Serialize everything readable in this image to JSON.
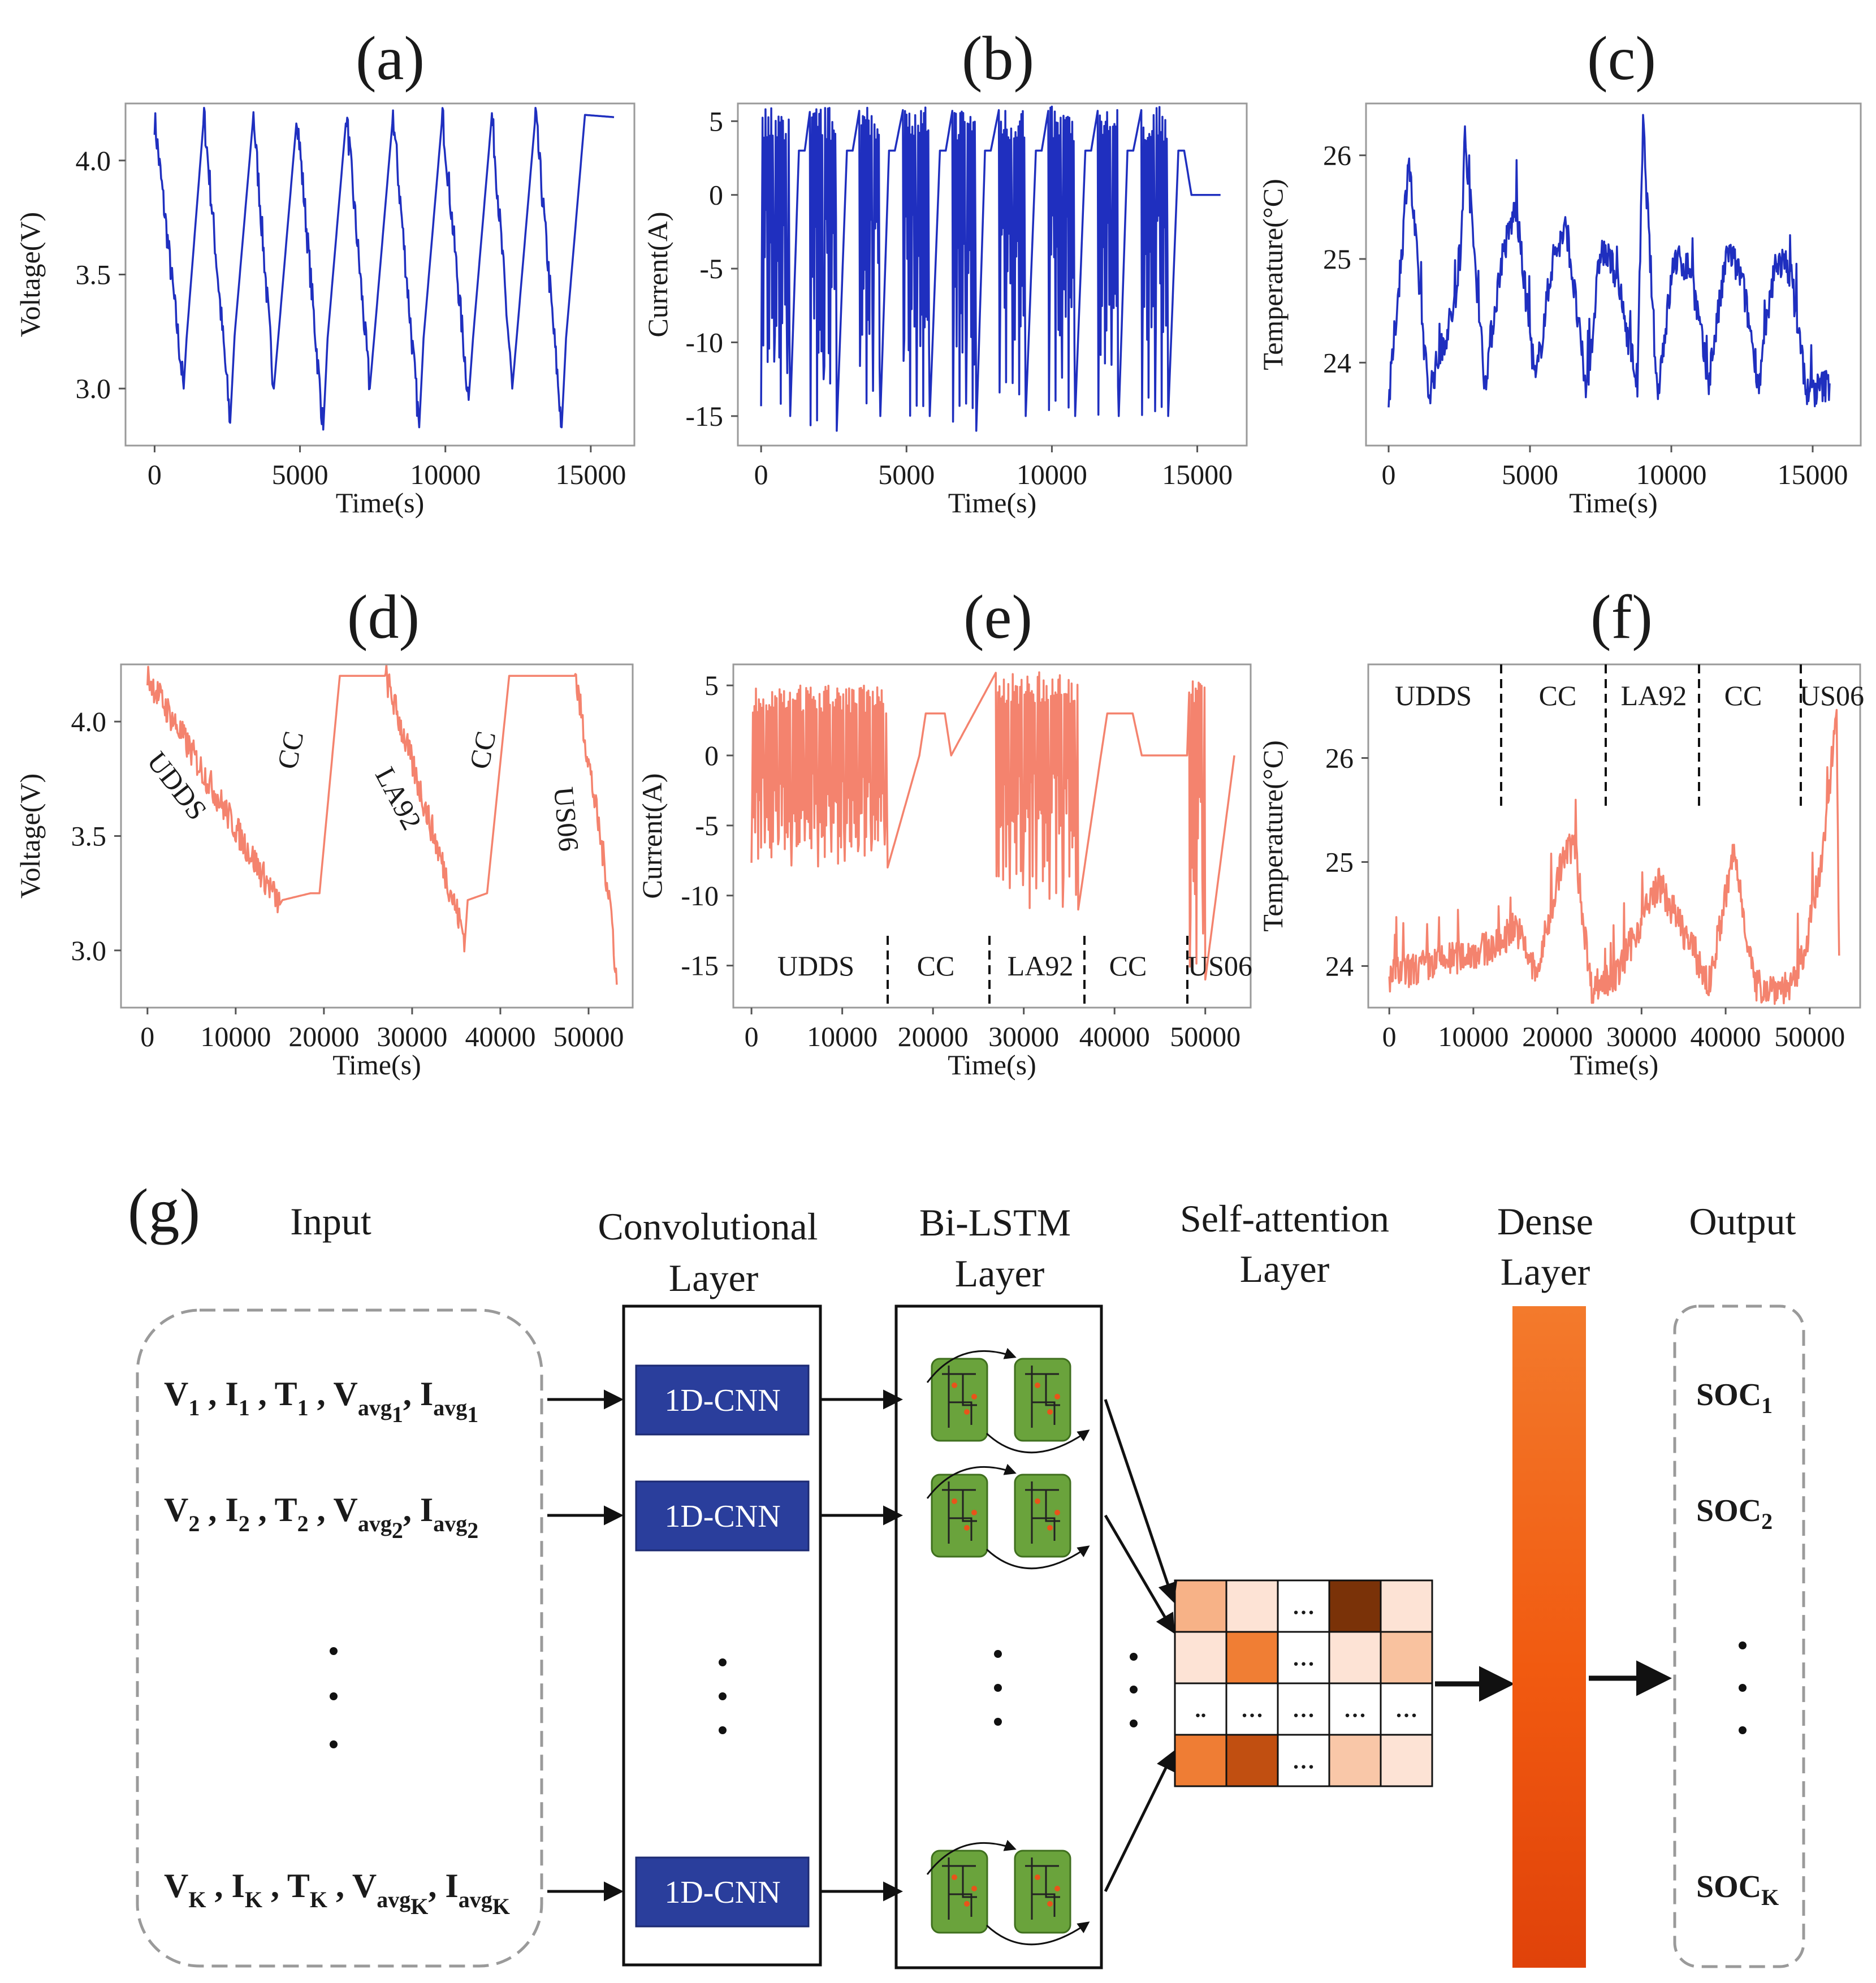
{
  "chart_data": [
    {
      "id": "a",
      "panel_label": "(a)",
      "type": "line",
      "color": "#1f2fbf",
      "xlabel": "Time(s)",
      "ylabel": "Voltage(V)",
      "xlim": [
        -1000,
        16500
      ],
      "ylim": [
        2.75,
        4.25
      ],
      "xticks": [
        0,
        5000,
        10000,
        15000
      ],
      "xtick_labels": [
        "0",
        "5000",
        "10000",
        "15000"
      ],
      "yticks": [
        3.0,
        3.5,
        4.0
      ],
      "ytick_labels": [
        "3.0",
        "3.5",
        "4.0"
      ],
      "series": [
        {
          "name": "Voltage",
          "signal": "voltage",
          "x": [
            0,
            1000,
            1100,
            1700,
            2600,
            2750,
            3400,
            4100,
            4250,
            4900,
            5800,
            5950,
            6600,
            7400,
            7550,
            8200,
            9100,
            9250,
            9900,
            10800,
            10950,
            11600,
            12300,
            12450,
            13100,
            14000,
            14150,
            14800,
            15800
          ],
          "y": [
            4.18,
            3.0,
            3.22,
            4.2,
            2.85,
            3.23,
            4.2,
            3.0,
            3.22,
            4.2,
            2.82,
            3.22,
            4.2,
            3.0,
            3.22,
            4.2,
            2.83,
            3.22,
            4.2,
            2.95,
            3.22,
            4.2,
            3.0,
            3.22,
            4.2,
            2.83,
            3.22,
            4.2,
            4.19
          ]
        }
      ]
    },
    {
      "id": "b",
      "panel_label": "(b)",
      "type": "line",
      "color": "#1f2fbf",
      "xlabel": "Time(s)",
      "ylabel": "Current(A)",
      "xlim": [
        -800,
        16700
      ],
      "ylim": [
        -17,
        6.2
      ],
      "xticks": [
        0,
        5000,
        10000,
        15000
      ],
      "xtick_labels": [
        "0",
        "5000",
        "10000",
        "15000"
      ],
      "yticks": [
        5,
        0,
        -5,
        -10,
        -15
      ],
      "ytick_labels": [
        "5",
        "0",
        "-5",
        "-10",
        "-15"
      ],
      "series": [
        {
          "name": "Current",
          "signal": "current",
          "x": [
            0,
            1000,
            1300,
            1500,
            1700,
            2600,
            2950,
            3150,
            3400,
            4100,
            4400,
            4600,
            4900,
            5800,
            6150,
            6350,
            6600,
            7400,
            7700,
            7900,
            8200,
            9100,
            9450,
            9650,
            9900,
            10800,
            11150,
            11350,
            11600,
            12300,
            12600,
            12800,
            13100,
            14000,
            14350,
            14550,
            14800,
            15800
          ],
          "y": [
            6,
            -15,
            3,
            3,
            6,
            -16,
            3,
            3,
            6,
            -15,
            3,
            3,
            6,
            -15,
            3,
            3,
            6,
            -16,
            3,
            3,
            6,
            -15,
            3,
            3,
            6,
            -15,
            3,
            3,
            6,
            -15,
            3,
            3,
            6,
            -15,
            3,
            3,
            0,
            0
          ]
        }
      ]
    },
    {
      "id": "c",
      "panel_label": "(c)",
      "type": "line",
      "color": "#1f2fbf",
      "xlabel": "Time(s)",
      "ylabel": "Temperature(°C)",
      "xlim": [
        -800,
        16700
      ],
      "ylim": [
        23.2,
        26.5
      ],
      "xticks": [
        0,
        5000,
        10000,
        15000
      ],
      "xtick_labels": [
        "0",
        "5000",
        "10000",
        "15000"
      ],
      "yticks": [
        24,
        25,
        26
      ],
      "ytick_labels": [
        "24",
        "25",
        "26"
      ],
      "series": [
        {
          "name": "Temperature",
          "signal": "temperature",
          "x": [
            0,
            500,
            700,
            1400,
            2500,
            2700,
            3400,
            4000,
            4500,
            5200,
            5800,
            6300,
            7000,
            7500,
            8000,
            8800,
            9000,
            9500,
            10100,
            10700,
            11300,
            12000,
            12500,
            13100,
            13700,
            14200,
            14800,
            15600
          ],
          "y": [
            23.6,
            25.2,
            26.0,
            23.7,
            24.7,
            26.2,
            23.8,
            25.0,
            25.5,
            23.8,
            25.0,
            25.3,
            23.7,
            25.1,
            24.9,
            23.8,
            26.3,
            23.7,
            25.0,
            24.9,
            23.8,
            25.1,
            24.8,
            23.8,
            25.0,
            24.9,
            23.7,
            23.8
          ]
        }
      ]
    },
    {
      "id": "d",
      "panel_label": "(d)",
      "type": "line",
      "color": "#f4836e",
      "xlabel": "Time(s)",
      "ylabel": "Voltage(V)",
      "xlim": [
        -3000,
        55000
      ],
      "ylim": [
        2.75,
        4.25
      ],
      "xticks": [
        0,
        10000,
        20000,
        30000,
        40000,
        50000
      ],
      "xtick_labels": [
        "0",
        "10000",
        "20000",
        "30000",
        "40000",
        "50000"
      ],
      "yticks": [
        3.0,
        3.5,
        4.0
      ],
      "ytick_labels": [
        "3.0",
        "3.5",
        "4.0"
      ],
      "series": [
        {
          "name": "Voltage",
          "signal": "voltage",
          "x": [
            0,
            15000,
            15300,
            18500,
            19500,
            21800,
            26500,
            27000,
            36000,
            36300,
            38500,
            41000,
            48000,
            48500,
            52500,
            53200
          ],
          "y": [
            4.2,
            3.2,
            3.22,
            3.25,
            3.25,
            4.2,
            4.2,
            4.2,
            3.05,
            3.22,
            3.25,
            4.2,
            4.2,
            4.2,
            3.2,
            2.85
          ]
        }
      ],
      "annotations": [
        "UDDS",
        "CC",
        "LA92",
        "CC",
        "US06"
      ]
    },
    {
      "id": "e",
      "panel_label": "(e)",
      "type": "line",
      "color": "#f4836e",
      "xlabel": "Time(s)",
      "ylabel": "Current(A)",
      "xlim": [
        -2000,
        55000
      ],
      "ylim": [
        -18,
        6.5
      ],
      "xticks": [
        0,
        10000,
        20000,
        30000,
        40000,
        50000
      ],
      "xtick_labels": [
        "0",
        "10000",
        "20000",
        "30000",
        "40000",
        "50000"
      ],
      "yticks": [
        5,
        0,
        -5,
        -10,
        -15
      ],
      "ytick_labels": [
        "5",
        "0",
        "-5",
        "-10",
        "-15"
      ],
      "series": [
        {
          "name": "Current",
          "signal": "current",
          "x": [
            0,
            15000,
            18500,
            19200,
            21300,
            22000,
            27000,
            36000,
            38500,
            39200,
            42000,
            43000,
            48000,
            48300,
            50000,
            53200
          ],
          "y": [
            4.7,
            -8,
            0,
            3,
            3,
            0,
            6,
            -11,
            0,
            3,
            3,
            0,
            0,
            6,
            -16,
            0
          ]
        }
      ],
      "annotations": [
        "UDDS",
        "CC",
        "LA92",
        "CC",
        "US06"
      ]
    },
    {
      "id": "f",
      "panel_label": "(f)",
      "type": "line",
      "color": "#f4836e",
      "xlabel": "Time(s)",
      "ylabel": "Temperature(°C)",
      "xlim": [
        -2500,
        56000
      ],
      "ylim": [
        23.6,
        26.9
      ],
      "xticks": [
        0,
        10000,
        20000,
        30000,
        40000,
        50000
      ],
      "xtick_labels": [
        "0",
        "10000",
        "20000",
        "30000",
        "40000",
        "50000"
      ],
      "yticks": [
        24,
        25,
        26
      ],
      "ytick_labels": [
        "24",
        "25",
        "26"
      ],
      "series": [
        {
          "name": "Temperature",
          "signal": "temperature",
          "x": [
            0,
            13000,
            15000,
            17500,
            20500,
            22000,
            24000,
            27000,
            32000,
            36500,
            38000,
            41000,
            43500,
            48000,
            49500,
            51500,
            53200,
            53500
          ],
          "y": [
            23.9,
            24.2,
            24.4,
            23.9,
            25.0,
            25.2,
            23.8,
            23.9,
            24.8,
            24.1,
            23.8,
            25.1,
            23.8,
            23.8,
            24.2,
            25.0,
            26.5,
            24.1
          ]
        }
      ],
      "annotations": [
        "UDDS",
        "CC",
        "LA92",
        "CC",
        "US06"
      ]
    }
  ],
  "diagram": {
    "panel_label": "(g)",
    "headers": {
      "input": "Input",
      "conv": [
        "Convolutional",
        "Layer"
      ],
      "bilstm": [
        "Bi-LSTM",
        "Layer"
      ],
      "attention": [
        "Self-attention",
        "Layer"
      ],
      "dense": [
        "Dense",
        "Layer"
      ],
      "output": "Output"
    },
    "input_rows": [
      {
        "V": "V",
        "I": "I",
        "T": "T",
        "sub": "1",
        "avg": "avg",
        "avg_sub": "1"
      },
      {
        "V": "V",
        "I": "I",
        "T": "T",
        "sub": "2",
        "avg": "avg",
        "avg_sub": "2"
      },
      {
        "V": "V",
        "I": "I",
        "T": "T",
        "sub": "K",
        "avg": "avg",
        "avg_sub": "K"
      }
    ],
    "cnn_label": "1D-CNN",
    "outputs": [
      {
        "main": "SOC",
        "sub": "1"
      },
      {
        "main": "SOC",
        "sub": "2"
      },
      {
        "main": "SOC",
        "sub": "K"
      }
    ],
    "ellipsis_cell": "…",
    "ellipsis_short": "..",
    "attention_rows": [
      [
        "#f7b287",
        "#fde3d5",
        "…",
        "#7a3208",
        "#fde3d5"
      ],
      [
        "#fde3d5",
        "#f07e34",
        "…",
        "#fde3d5",
        "#f9c29f"
      ],
      [
        "..",
        "…",
        "…",
        "…",
        "…"
      ],
      [
        "#ef7d34",
        "#c14f11",
        "…",
        "#f9c7a8",
        "#fde3d5"
      ]
    ]
  }
}
